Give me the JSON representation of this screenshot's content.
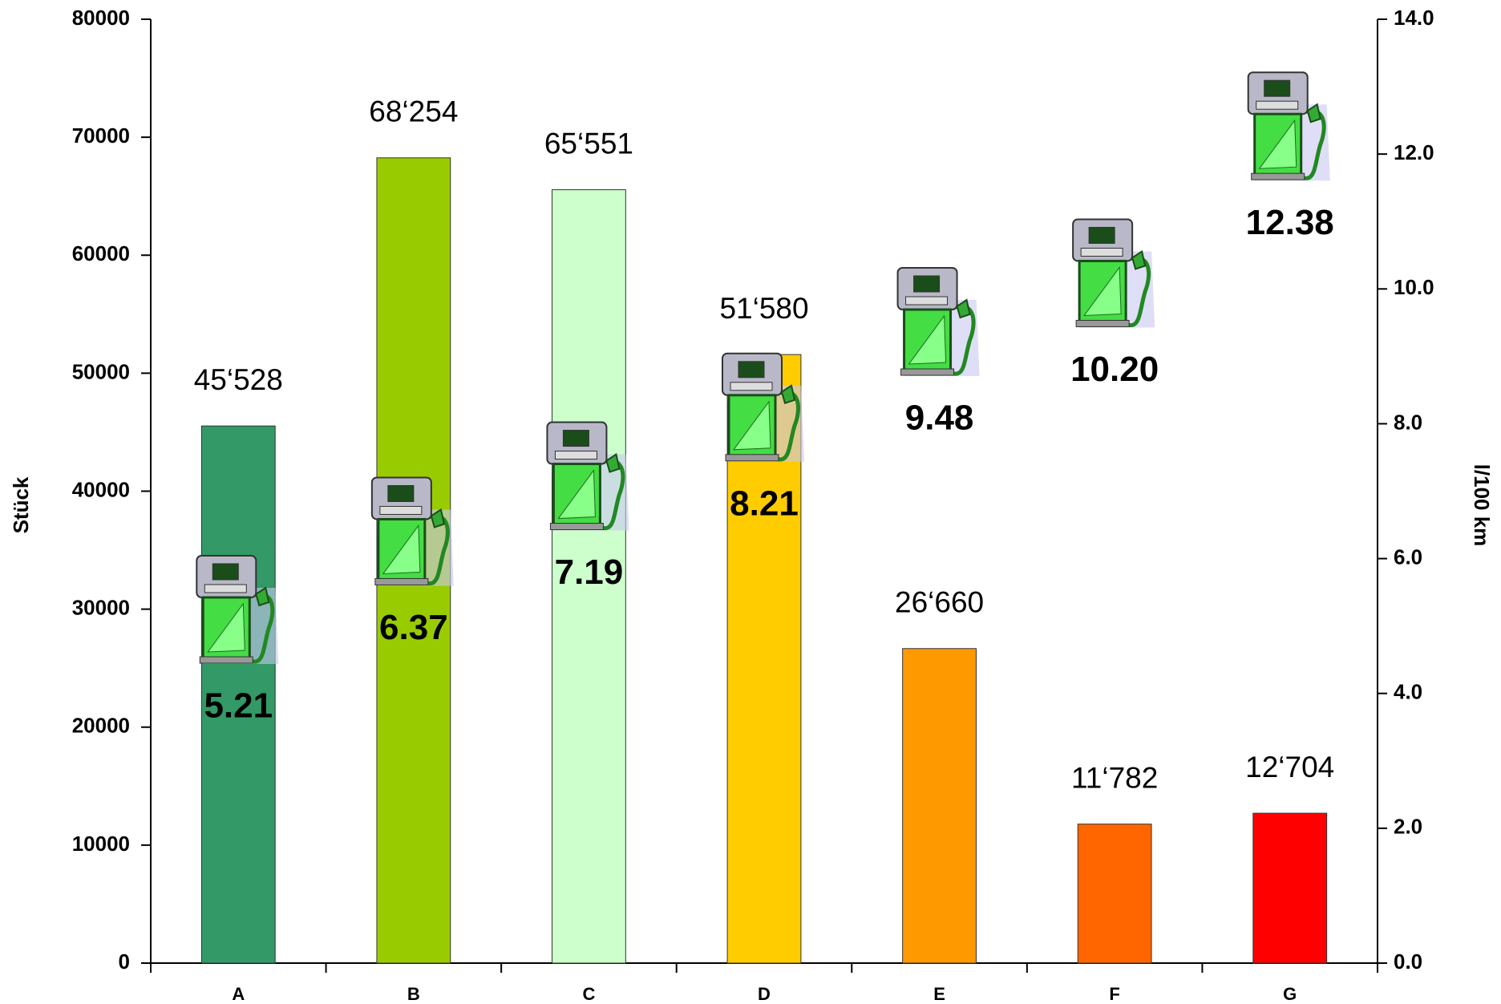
{
  "chart_data": {
    "type": "bar",
    "categories": [
      "A",
      "B",
      "C",
      "D",
      "E",
      "F",
      "G"
    ],
    "series": [
      {
        "values": [
          45528,
          68254,
          65551,
          51580,
          26660,
          11782,
          12704
        ],
        "value_labels": [
          "45‘528",
          "68‘254",
          "65‘551",
          "51‘580",
          "26‘660",
          "11‘782",
          "12‘704"
        ],
        "colors": [
          "#339966",
          "#99cc00",
          "#ccffcc",
          "#ffcc00",
          "#ff9900",
          "#ff6600",
          "#ff0000"
        ]
      },
      {
        "axis": "y2",
        "marker": "fuel-pump",
        "values": [
          5.21,
          6.37,
          7.19,
          8.21,
          9.48,
          10.2,
          12.38
        ],
        "value_labels": [
          "5.21",
          "6.37",
          "7.19",
          "8.21",
          "9.48",
          "10.20",
          "12.38"
        ]
      }
    ],
    "ylabel": "Stück",
    "y2label": "l/100 km",
    "ylim": [
      0,
      80000
    ],
    "yticks": [
      0,
      10000,
      20000,
      30000,
      40000,
      50000,
      60000,
      70000,
      80000
    ],
    "y2lim": [
      0,
      14
    ],
    "y2ticks": [
      {
        "value": 0,
        "label": "0.0"
      },
      {
        "value": 2,
        "label": "2.0"
      },
      {
        "value": 4,
        "label": "4.0"
      },
      {
        "value": 6,
        "label": "6.0"
      },
      {
        "value": 8,
        "label": "8.0"
      },
      {
        "value": 10,
        "label": "10.0"
      },
      {
        "value": 12,
        "label": "12.0"
      },
      {
        "value": 14,
        "label": "14.0"
      }
    ]
  }
}
